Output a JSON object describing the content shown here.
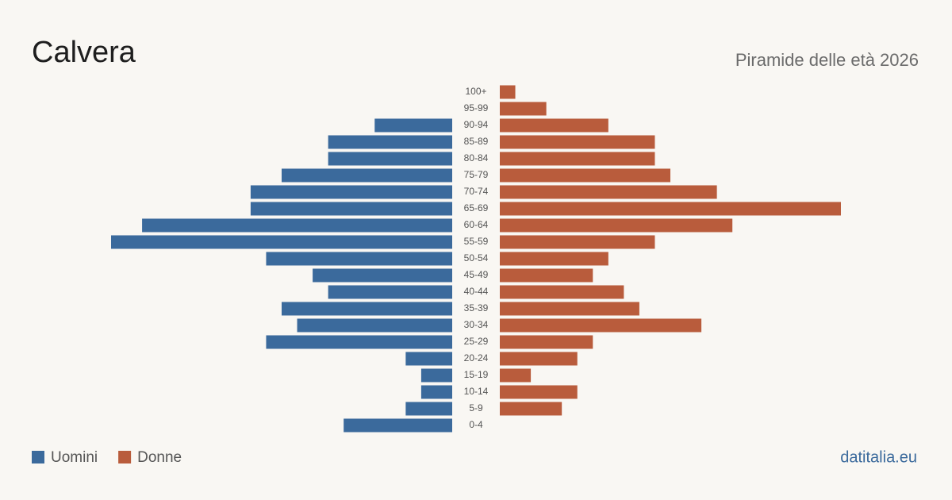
{
  "chart_data": {
    "type": "pyramid",
    "title": "Calvera",
    "subtitle": "Piramide delle età 2026",
    "source": "datitalia.eu",
    "categories": [
      "100+",
      "95-99",
      "90-94",
      "85-89",
      "80-84",
      "75-79",
      "70-74",
      "65-69",
      "60-64",
      "55-59",
      "50-54",
      "45-49",
      "40-44",
      "35-39",
      "30-34",
      "25-29",
      "20-24",
      "15-19",
      "10-14",
      "5-9",
      "0-4"
    ],
    "series": [
      {
        "name": "Uomini",
        "color": "#3b6a9c",
        "values": [
          0,
          0,
          5,
          8,
          8,
          11,
          13,
          13,
          20,
          22,
          12,
          9,
          8,
          11,
          10,
          12,
          3,
          2,
          2,
          3,
          7
        ]
      },
      {
        "name": "Donne",
        "color": "#b95c3c",
        "values": [
          1,
          3,
          7,
          10,
          10,
          11,
          14,
          22,
          15,
          10,
          7,
          6,
          8,
          9,
          13,
          6,
          5,
          2,
          5,
          4,
          0
        ]
      }
    ]
  }
}
